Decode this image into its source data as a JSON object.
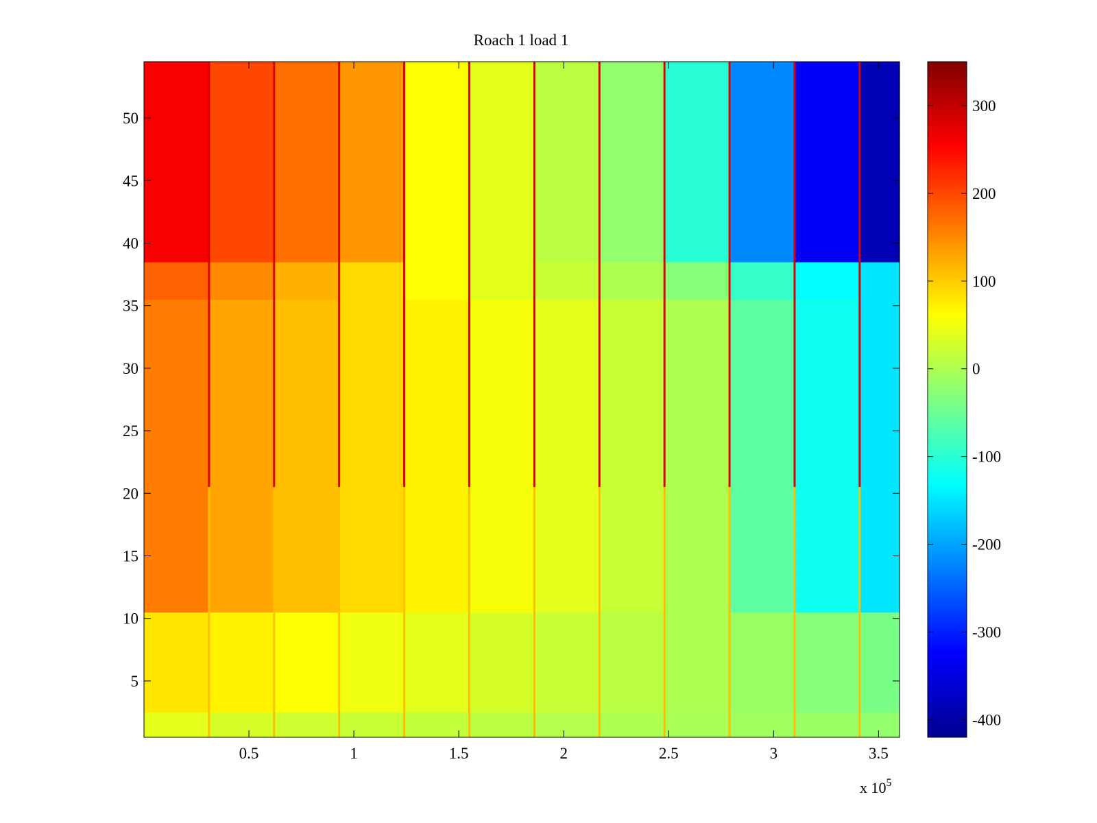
{
  "chart_data": {
    "type": "heatmap",
    "title": "Roach 1 load 1",
    "xlabel": "",
    "ylabel": "",
    "x_range": [
      0,
      360000
    ],
    "y_range": [
      0.5,
      54.5
    ],
    "x_ticks": [
      50000,
      100000,
      150000,
      200000,
      250000,
      300000,
      350000
    ],
    "x_tick_labels": [
      "0.5",
      "1",
      "1.5",
      "2",
      "2.5",
      "3",
      "3.5"
    ],
    "x_exponent_label": {
      "base": "x 10",
      "exponent": "5"
    },
    "y_ticks": [
      5,
      10,
      15,
      20,
      25,
      30,
      35,
      40,
      45,
      50
    ],
    "y_tick_labels": [
      "5",
      "10",
      "15",
      "20",
      "25",
      "30",
      "35",
      "40",
      "45",
      "50"
    ],
    "colorbar": {
      "colormap": "jet",
      "range": [
        -420,
        350
      ],
      "ticks": [
        -400,
        -300,
        -200,
        -100,
        0,
        100,
        200,
        300
      ],
      "tick_labels": [
        "-400",
        "-300",
        "-200",
        "-100",
        "0",
        "100",
        "200",
        "300"
      ]
    },
    "rows": 54,
    "column_blocks": 12,
    "block_width": 31000,
    "approx_block_values": {
      "row_groups": [
        {
          "rows": [
            1,
            2
          ],
          "values": [
            40,
            30,
            25,
            20,
            15,
            10,
            5,
            0,
            -5,
            -10,
            -15,
            -20
          ]
        },
        {
          "rows": [
            3,
            10
          ],
          "values": [
            80,
            70,
            60,
            50,
            40,
            30,
            20,
            10,
            0,
            -15,
            -30,
            -40
          ]
        },
        {
          "rows": [
            11,
            35
          ],
          "values": [
            160,
            130,
            110,
            90,
            70,
            55,
            40,
            20,
            0,
            -60,
            -120,
            -150
          ]
        },
        {
          "rows": [
            36,
            38
          ],
          "values": [
            180,
            150,
            120,
            90,
            60,
            40,
            20,
            0,
            -30,
            -90,
            -130,
            -150
          ]
        },
        {
          "rows": [
            39,
            54
          ],
          "values": [
            260,
            200,
            170,
            140,
            60,
            40,
            10,
            -20,
            -100,
            -220,
            -330,
            -380
          ]
        }
      ],
      "boundary_stripe_values": {
        "top_rows": 280,
        "bottom_rows": 110
      }
    }
  }
}
